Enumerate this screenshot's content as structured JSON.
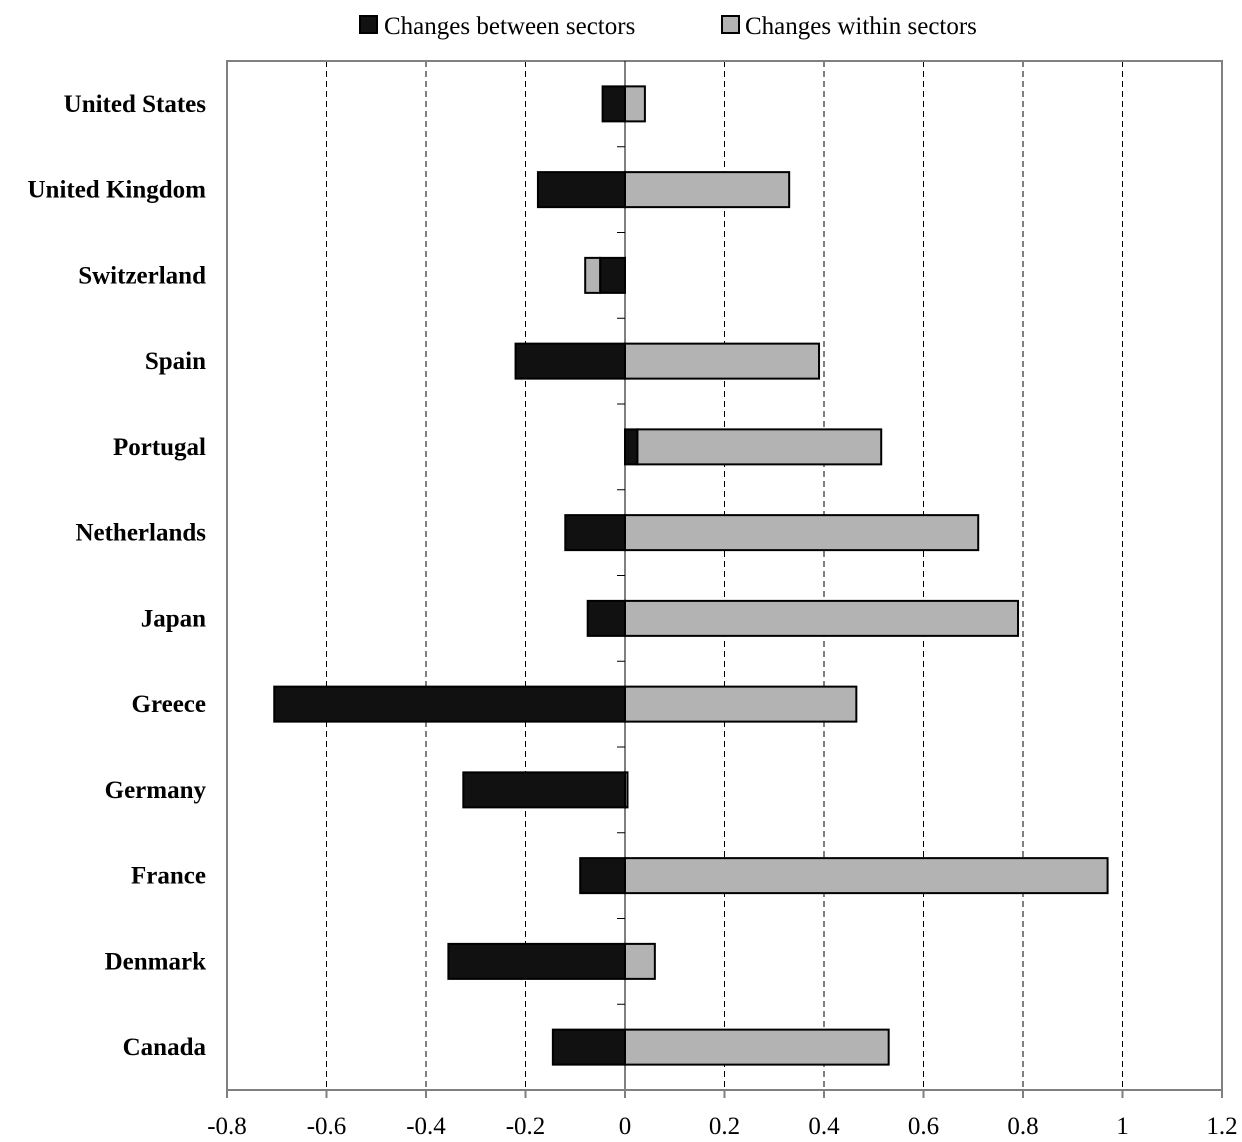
{
  "chart_data": {
    "type": "bar",
    "orientation": "horizontal",
    "stacking": "diverging",
    "categories": [
      "United States",
      "United Kingdom",
      "Switzerland",
      "Spain",
      "Portugal",
      "Netherlands",
      "Japan",
      "Greece",
      "Germany",
      "France",
      "Denmark",
      "Canada"
    ],
    "series": [
      {
        "name": "Changes between sectors",
        "color": "#111111",
        "values": [
          -0.045,
          -0.175,
          -0.05,
          -0.22,
          0.025,
          -0.12,
          -0.075,
          -0.705,
          -0.325,
          -0.09,
          -0.355,
          -0.145
        ]
      },
      {
        "name": "Changes within sectors",
        "color": "#b3b3b3",
        "values": [
          0.04,
          0.33,
          -0.03,
          0.39,
          0.49,
          0.71,
          0.79,
          0.465,
          0.005,
          0.97,
          0.06,
          0.53
        ]
      }
    ],
    "xlim": [
      -0.8,
      1.2
    ],
    "xticks": [
      -0.8,
      -0.6,
      -0.4,
      -0.2,
      0,
      0.2,
      0.4,
      0.6,
      0.8,
      1,
      1.2
    ],
    "xtick_labels": [
      "-0.8",
      "-0.6",
      "-0.4",
      "-0.2",
      "0",
      "0.2",
      "0.4",
      "0.6",
      "0.8",
      "1",
      "1.2"
    ],
    "grid": "vertical dashed",
    "legend_position": "top-center"
  }
}
